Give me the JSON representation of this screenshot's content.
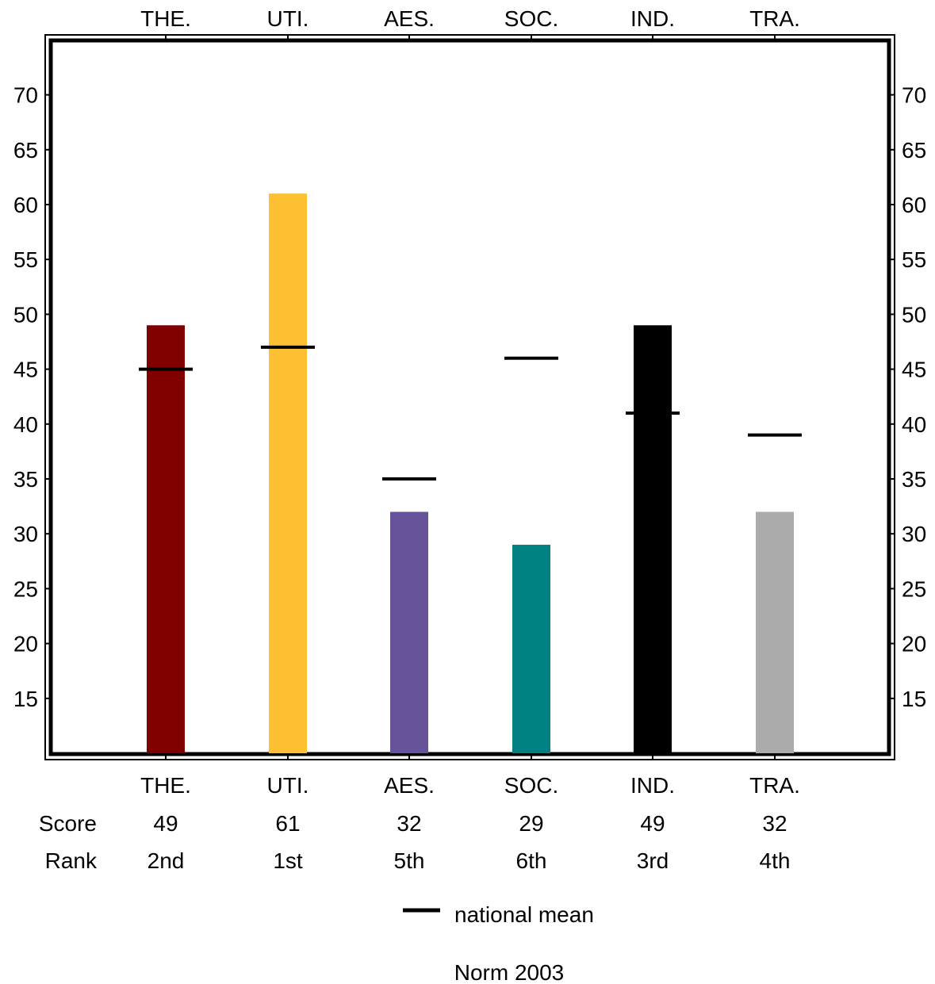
{
  "chart_data": {
    "type": "bar",
    "categories": [
      "THE.",
      "UTI.",
      "AES.",
      "SOC.",
      "IND.",
      "TRA."
    ],
    "series": [
      {
        "values": [
          49,
          61,
          32,
          29,
          49,
          32
        ],
        "colors": [
          "#800000",
          "#FDC033",
          "#675399",
          "#008080",
          "#000000",
          "#ABABAB"
        ]
      }
    ],
    "national_mean": [
      45,
      47,
      35,
      46,
      41,
      39
    ],
    "score_label": "Score",
    "rank_label": "Rank",
    "scores": [
      "49",
      "61",
      "32",
      "29",
      "49",
      "32"
    ],
    "ranks": [
      "2nd",
      "1st",
      "5th",
      "6th",
      "3rd",
      "4th"
    ],
    "yticks": [
      15,
      20,
      25,
      30,
      35,
      40,
      45,
      50,
      55,
      60,
      65,
      70
    ],
    "ylim": [
      10,
      75
    ],
    "legend": {
      "mean_label": "national mean",
      "position": "bottom-center"
    },
    "footer": "Norm 2003",
    "grid": false
  }
}
